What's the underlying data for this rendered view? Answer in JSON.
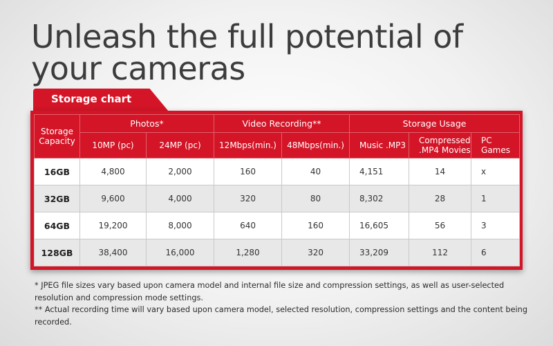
{
  "headline": "Unleash the full potential of your cameras",
  "tab_label": "Storage chart",
  "table": {
    "corner_header": "Storage Capacity",
    "groups": [
      {
        "label": "Photos*"
      },
      {
        "label": "Video Recording**"
      },
      {
        "label": "Storage Usage"
      }
    ],
    "subheaders": [
      "10MP (pc)",
      "24MP (pc)",
      "12Mbps(min.)",
      "48Mbps(min.)",
      "Music .MP3",
      "Compressed .MP4 Movies",
      "PC Games"
    ],
    "rows": [
      {
        "capacity": "16GB",
        "cells": [
          "4,800",
          "2,000",
          "160",
          "40",
          "4,151",
          "14",
          "x"
        ]
      },
      {
        "capacity": "32GB",
        "cells": [
          "9,600",
          "4,000",
          "320",
          "80",
          "8,302",
          "28",
          "1"
        ]
      },
      {
        "capacity": "64GB",
        "cells": [
          "19,200",
          "8,000",
          "640",
          "160",
          "16,605",
          "56",
          "3"
        ]
      },
      {
        "capacity": "128GB",
        "cells": [
          "38,400",
          "16,000",
          "1,280",
          "320",
          "33,209",
          "112",
          "6"
        ]
      }
    ]
  },
  "notes": [
    "* JPEG file sizes vary based upon camera model and internal file size and compression settings, as well as user-selected resolution and compression mode settings.",
    "** Actual recording time will vary based upon camera model, selected resolution, compression settings and the content being recorded."
  ],
  "colors": {
    "accent": "#d31527",
    "headline": "#3c3c3c",
    "row_alt": "#e8e8e8"
  }
}
